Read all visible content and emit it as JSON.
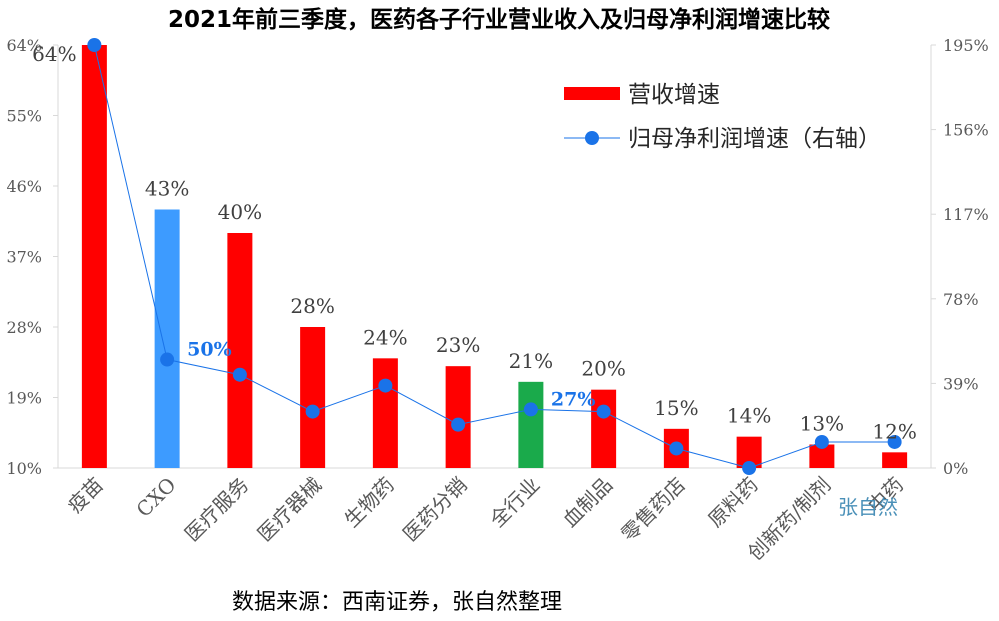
{
  "chart_data": {
    "type": "bar",
    "title": "2021年前三季度，医药各子行业营业收入及归母净利润增速比较",
    "categories": [
      "疫苗",
      "CXO",
      "医疗服务",
      "医疗器械",
      "生物药",
      "医药分销",
      "全行业",
      "血制品",
      "零售药店",
      "原料药",
      "创新药/制剂",
      "中药"
    ],
    "series": [
      {
        "name": "营收增速",
        "axis": "left",
        "values": [
          64,
          43,
          40,
          28,
          24,
          23,
          21,
          20,
          15,
          14,
          13,
          12
        ],
        "labels": [
          "64%",
          "43%",
          "40%",
          "28%",
          "24%",
          "23%",
          "21%",
          "20%",
          "15%",
          "14%",
          "13%",
          "12%"
        ],
        "colors": [
          "#ff0000",
          "#3d9bff",
          "#ff0000",
          "#ff0000",
          "#ff0000",
          "#ff0000",
          "#1aaa4b",
          "#ff0000",
          "#ff0000",
          "#ff0000",
          "#ff0000",
          "#ff0000"
        ]
      },
      {
        "name": "归母净利润增速（右轴）",
        "axis": "right",
        "type": "line",
        "color": "#1a73e8",
        "values": [
          195,
          50,
          43,
          26,
          38,
          20,
          27,
          26,
          9,
          0,
          12,
          12
        ],
        "point_labels": {
          "1": "50%",
          "6": "27%"
        }
      }
    ],
    "y_left": {
      "range": [
        10,
        64
      ],
      "ticks": [
        "10%",
        "19%",
        "28%",
        "37%",
        "46%",
        "55%",
        "64%"
      ]
    },
    "y_right": {
      "range": [
        0,
        195
      ],
      "ticks": [
        "0%",
        "39%",
        "78%",
        "117%",
        "156%",
        "195%"
      ]
    },
    "legend_position": "top-right",
    "grid": false
  },
  "source": "数据来源：西南证券，张自然整理",
  "watermark": "张自然"
}
